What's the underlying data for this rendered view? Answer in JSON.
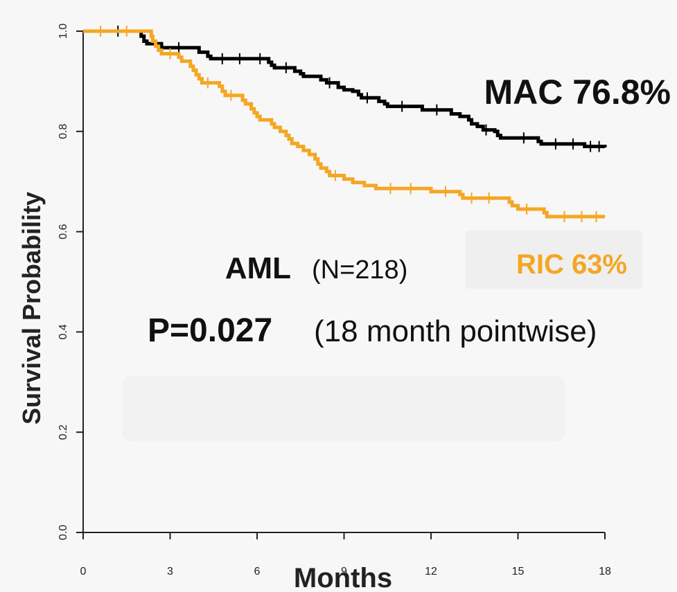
{
  "chart_data": {
    "type": "line",
    "xlabel": "Months",
    "ylabel": "Survival Probability",
    "xlim": [
      0,
      18
    ],
    "ylim": [
      0,
      1.0
    ],
    "x_ticks": [
      0,
      3,
      6,
      9,
      12,
      15,
      18
    ],
    "y_ticks": [
      "0.0",
      "0.2",
      "0.4",
      "0.6",
      "0.8",
      "1.0"
    ],
    "grid": false,
    "annotations": {
      "mac": "MAC 76.8%",
      "ric": "RIC 63%",
      "cohort": "AML",
      "n": "(N=218)",
      "p": "P=0.027",
      "p_note": "(18 month pointwise)"
    },
    "colors": {
      "mac": "#000000",
      "ric": "#f5a623"
    },
    "series": [
      {
        "key": "mac",
        "color": "#000000",
        "points": [
          [
            0,
            1.0
          ],
          [
            1.8,
            1.0
          ],
          [
            2.0,
            0.99
          ],
          [
            2.1,
            0.98
          ],
          [
            2.2,
            0.975
          ],
          [
            2.6,
            0.975
          ],
          [
            2.7,
            0.967
          ],
          [
            3.9,
            0.967
          ],
          [
            4.0,
            0.958
          ],
          [
            4.2,
            0.958
          ],
          [
            4.3,
            0.95
          ],
          [
            4.4,
            0.945
          ],
          [
            6.3,
            0.945
          ],
          [
            6.4,
            0.938
          ],
          [
            6.5,
            0.932
          ],
          [
            6.6,
            0.927
          ],
          [
            7.2,
            0.927
          ],
          [
            7.3,
            0.92
          ],
          [
            7.5,
            0.915
          ],
          [
            7.6,
            0.91
          ],
          [
            8.1,
            0.91
          ],
          [
            8.2,
            0.903
          ],
          [
            8.4,
            0.897
          ],
          [
            8.7,
            0.897
          ],
          [
            8.8,
            0.888
          ],
          [
            9.0,
            0.883
          ],
          [
            9.3,
            0.88
          ],
          [
            9.5,
            0.873
          ],
          [
            9.6,
            0.867
          ],
          [
            10.1,
            0.867
          ],
          [
            10.2,
            0.86
          ],
          [
            10.4,
            0.855
          ],
          [
            10.5,
            0.85
          ],
          [
            11.6,
            0.85
          ],
          [
            11.7,
            0.843
          ],
          [
            12.6,
            0.843
          ],
          [
            12.7,
            0.835
          ],
          [
            13.0,
            0.83
          ],
          [
            13.3,
            0.823
          ],
          [
            13.4,
            0.815
          ],
          [
            13.6,
            0.81
          ],
          [
            13.8,
            0.803
          ],
          [
            14.2,
            0.8
          ],
          [
            14.3,
            0.792
          ],
          [
            14.4,
            0.787
          ],
          [
            15.6,
            0.787
          ],
          [
            15.7,
            0.78
          ],
          [
            15.8,
            0.775
          ],
          [
            17.2,
            0.775
          ],
          [
            17.3,
            0.77
          ],
          [
            18.0,
            0.768
          ]
        ],
        "censor_x": [
          1.2,
          3.3,
          4.8,
          5.4,
          6.1,
          7.0,
          8.5,
          9.8,
          11.0,
          12.2,
          13.9,
          15.2,
          16.3,
          16.9,
          17.5,
          17.8
        ]
      },
      {
        "key": "ric",
        "color": "#f5a623",
        "points": [
          [
            0,
            1.0
          ],
          [
            2.3,
            1.0
          ],
          [
            2.35,
            0.99
          ],
          [
            2.4,
            0.98
          ],
          [
            2.5,
            0.97
          ],
          [
            2.6,
            0.962
          ],
          [
            2.7,
            0.955
          ],
          [
            3.2,
            0.955
          ],
          [
            3.3,
            0.948
          ],
          [
            3.4,
            0.94
          ],
          [
            3.6,
            0.94
          ],
          [
            3.7,
            0.93
          ],
          [
            3.8,
            0.922
          ],
          [
            3.9,
            0.913
          ],
          [
            4.0,
            0.905
          ],
          [
            4.1,
            0.897
          ],
          [
            4.6,
            0.897
          ],
          [
            4.7,
            0.89
          ],
          [
            4.8,
            0.88
          ],
          [
            4.9,
            0.872
          ],
          [
            5.4,
            0.872
          ],
          [
            5.5,
            0.862
          ],
          [
            5.6,
            0.855
          ],
          [
            5.8,
            0.845
          ],
          [
            5.9,
            0.837
          ],
          [
            6.0,
            0.83
          ],
          [
            6.1,
            0.823
          ],
          [
            6.4,
            0.823
          ],
          [
            6.5,
            0.815
          ],
          [
            6.6,
            0.808
          ],
          [
            6.8,
            0.8
          ],
          [
            7.0,
            0.792
          ],
          [
            7.1,
            0.785
          ],
          [
            7.2,
            0.776
          ],
          [
            7.4,
            0.77
          ],
          [
            7.6,
            0.762
          ],
          [
            7.8,
            0.754
          ],
          [
            8.0,
            0.745
          ],
          [
            8.1,
            0.735
          ],
          [
            8.2,
            0.727
          ],
          [
            8.4,
            0.72
          ],
          [
            8.5,
            0.712
          ],
          [
            8.9,
            0.712
          ],
          [
            9.0,
            0.705
          ],
          [
            9.2,
            0.705
          ],
          [
            9.3,
            0.698
          ],
          [
            9.6,
            0.698
          ],
          [
            9.7,
            0.692
          ],
          [
            10.0,
            0.692
          ],
          [
            10.1,
            0.686
          ],
          [
            11.9,
            0.686
          ],
          [
            12.0,
            0.68
          ],
          [
            12.9,
            0.68
          ],
          [
            13.0,
            0.674
          ],
          [
            13.1,
            0.667
          ],
          [
            14.6,
            0.667
          ],
          [
            14.7,
            0.659
          ],
          [
            14.8,
            0.652
          ],
          [
            15.0,
            0.645
          ],
          [
            15.8,
            0.645
          ],
          [
            15.9,
            0.638
          ],
          [
            16.0,
            0.63
          ],
          [
            18.0,
            0.63
          ]
        ],
        "censor_x": [
          0.6,
          1.5,
          3.0,
          4.3,
          5.1,
          8.7,
          10.6,
          11.3,
          12.5,
          13.4,
          14.0,
          15.3,
          16.6,
          17.2,
          17.7
        ]
      }
    ]
  }
}
